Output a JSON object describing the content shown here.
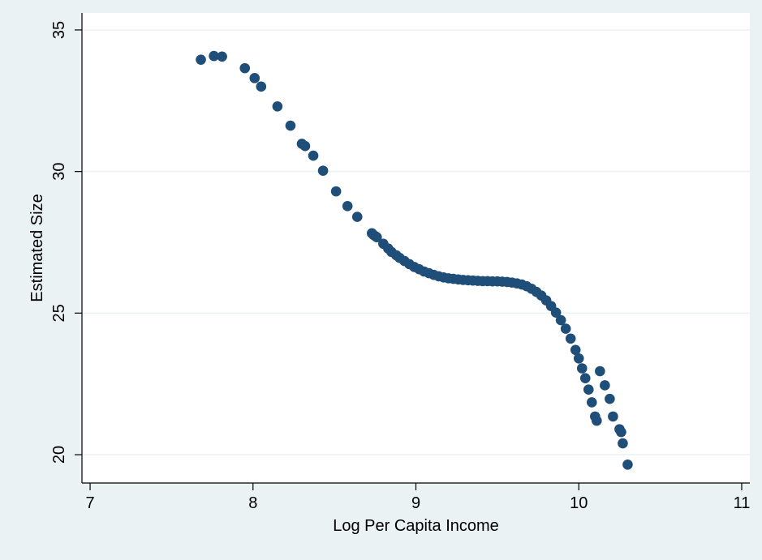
{
  "chart_data": {
    "type": "scatter",
    "title": "",
    "xlabel": "Log Per Capita Income",
    "ylabel": "Estimated Size",
    "xlim": [
      6.95,
      11.05
    ],
    "ylim": [
      19.0,
      35.6
    ],
    "x_ticks": [
      7,
      8,
      9,
      10,
      11
    ],
    "y_ticks": [
      20,
      25,
      30,
      35
    ],
    "grid": "horizontal",
    "legend": "none",
    "colors": {
      "background": "#eaf2f3",
      "plot_area": "#ffffff",
      "marker": "#1f4e79",
      "gridline": "#eaf2f3",
      "axis": "#000000"
    },
    "series": [
      {
        "x": [
          7.68,
          7.76,
          7.81,
          7.95,
          8.01,
          8.05,
          8.15,
          8.23,
          8.3,
          8.32,
          8.37,
          8.43,
          8.51,
          8.58,
          8.64,
          8.73,
          8.74,
          8.75,
          8.76,
          8.8,
          8.83,
          8.85,
          8.88,
          8.9,
          8.93,
          8.96,
          8.99,
          9.02,
          9.05,
          9.08,
          9.11,
          9.14,
          9.17,
          9.2,
          9.23,
          9.26,
          9.29,
          9.32,
          9.35,
          9.38,
          9.41,
          9.44,
          9.47,
          9.5,
          9.53,
          9.56,
          9.59,
          9.62,
          9.65,
          9.68,
          9.71,
          9.74,
          9.77,
          9.8,
          9.83,
          9.86,
          9.89,
          9.92,
          9.95,
          9.98,
          10.0,
          10.02,
          10.04,
          10.06,
          10.08,
          10.1,
          10.11,
          10.13,
          10.16,
          10.19,
          10.21,
          10.25,
          10.26,
          10.27,
          10.3
        ],
        "y": [
          33.95,
          34.08,
          34.06,
          33.65,
          33.3,
          33.0,
          32.3,
          31.62,
          30.98,
          30.9,
          30.56,
          30.03,
          29.3,
          28.78,
          28.4,
          27.82,
          27.76,
          27.72,
          27.68,
          27.45,
          27.28,
          27.16,
          27.04,
          26.95,
          26.84,
          26.73,
          26.63,
          26.55,
          26.47,
          26.41,
          26.35,
          26.3,
          26.26,
          26.23,
          26.21,
          26.19,
          26.17,
          26.16,
          26.15,
          26.14,
          26.13,
          26.13,
          26.12,
          26.12,
          26.11,
          26.1,
          26.08,
          26.05,
          26.01,
          25.95,
          25.86,
          25.75,
          25.62,
          25.45,
          25.25,
          25.02,
          24.75,
          24.45,
          24.1,
          23.7,
          23.4,
          23.05,
          22.7,
          22.3,
          21.85,
          21.35,
          21.2,
          22.95,
          22.45,
          21.97,
          21.35,
          20.9,
          20.8,
          20.4,
          19.65
        ]
      }
    ]
  }
}
